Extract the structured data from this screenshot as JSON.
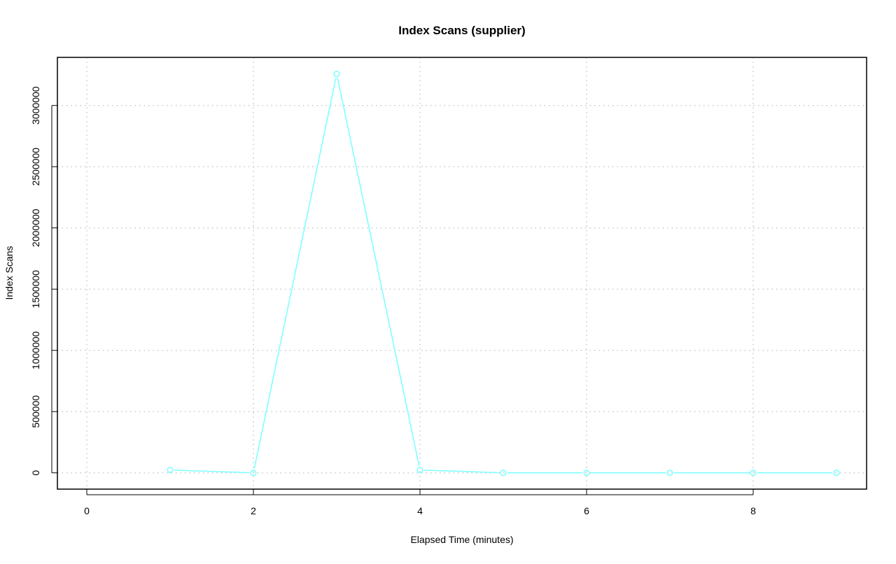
{
  "chart_data": {
    "type": "line",
    "title": "Index Scans (supplier)",
    "xlabel": "Elapsed Time (minutes)",
    "ylabel": "Index Scans",
    "xlim": [
      0,
      9
    ],
    "ylim": [
      0,
      3257000
    ],
    "x_ticks": [
      0,
      2,
      4,
      6,
      8
    ],
    "y_ticks": [
      0,
      500000,
      1000000,
      1500000,
      2000000,
      2500000,
      3000000
    ],
    "grid": true,
    "series": [
      {
        "color": "#80FFFF",
        "marker": "open-circle",
        "x": [
          1,
          2,
          3,
          4,
          5,
          6,
          7,
          8,
          9
        ],
        "y": [
          23000,
          0,
          3257000,
          23000,
          0,
          0,
          0,
          0,
          0
        ]
      }
    ]
  }
}
